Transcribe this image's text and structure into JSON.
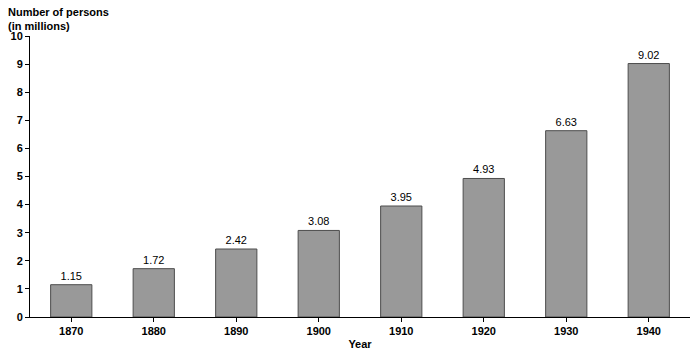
{
  "chart_data": {
    "type": "bar",
    "x_label": "Year",
    "y_label": "Number of persons\n(in millions)",
    "categories": [
      "1870",
      "1880",
      "1890",
      "1900",
      "1910",
      "1920",
      "1930",
      "1940"
    ],
    "values": [
      1.15,
      1.72,
      2.42,
      3.08,
      3.95,
      4.93,
      6.63,
      9.02
    ],
    "color": "#999999",
    "ylim": [
      0,
      10
    ],
    "yticks": [
      0,
      1,
      2,
      3,
      4,
      5,
      6,
      7,
      8,
      9,
      10
    ],
    "grid": false,
    "data_labels": true
  }
}
